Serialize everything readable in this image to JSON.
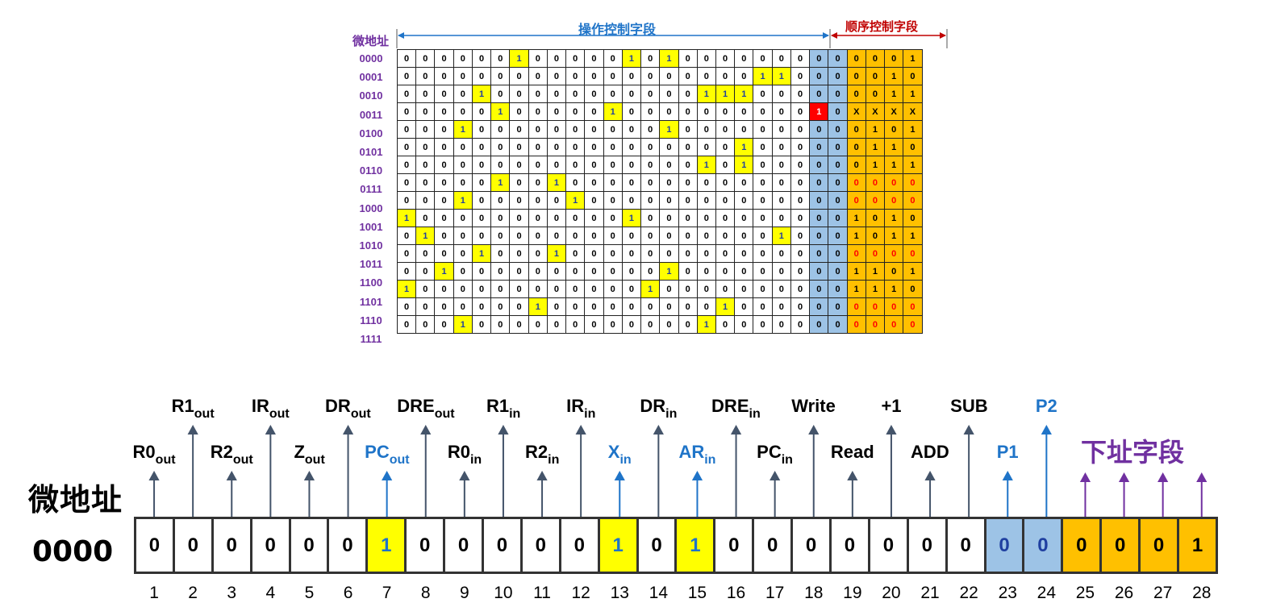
{
  "top_figure": {
    "address_column_header": "微地址",
    "operation_field_label": "操作控制字段",
    "sequence_field_label": "顺序控制字段",
    "rows": [
      {
        "addr": "0000",
        "bits": [
          "0",
          "0",
          "0",
          "0",
          "0",
          "0",
          "1",
          "0",
          "0",
          "0",
          "0",
          "0",
          "1",
          "0",
          "1",
          "0",
          "0",
          "0",
          "0",
          "0",
          "0",
          "0",
          "0",
          "0",
          "0",
          "0",
          "0",
          "1"
        ]
      },
      {
        "addr": "0001",
        "bits": [
          "0",
          "0",
          "0",
          "0",
          "0",
          "0",
          "0",
          "0",
          "0",
          "0",
          "0",
          "0",
          "0",
          "0",
          "0",
          "0",
          "0",
          "0",
          "0",
          "1",
          "1",
          "0",
          "0",
          "0",
          "0",
          "0",
          "1",
          "0"
        ]
      },
      {
        "addr": "0010",
        "bits": [
          "0",
          "0",
          "0",
          "0",
          "1",
          "0",
          "0",
          "0",
          "0",
          "0",
          "0",
          "0",
          "0",
          "0",
          "0",
          "0",
          "1",
          "1",
          "1",
          "0",
          "0",
          "0",
          "0",
          "0",
          "0",
          "0",
          "1",
          "1"
        ]
      },
      {
        "addr": "0011",
        "bits": [
          "0",
          "0",
          "0",
          "0",
          "0",
          "1",
          "0",
          "0",
          "0",
          "0",
          "0",
          "1",
          "0",
          "0",
          "0",
          "0",
          "0",
          "0",
          "0",
          "0",
          "0",
          "0",
          "1",
          "0",
          "X",
          "X",
          "X",
          "X"
        ]
      },
      {
        "addr": "0100",
        "bits": [
          "0",
          "0",
          "0",
          "1",
          "0",
          "0",
          "0",
          "0",
          "0",
          "0",
          "0",
          "0",
          "0",
          "0",
          "1",
          "0",
          "0",
          "0",
          "0",
          "0",
          "0",
          "0",
          "0",
          "0",
          "0",
          "1",
          "0",
          "1"
        ]
      },
      {
        "addr": "0101",
        "bits": [
          "0",
          "0",
          "0",
          "0",
          "0",
          "0",
          "0",
          "0",
          "0",
          "0",
          "0",
          "0",
          "0",
          "0",
          "0",
          "0",
          "0",
          "0",
          "1",
          "0",
          "0",
          "0",
          "0",
          "0",
          "0",
          "1",
          "1",
          "0"
        ]
      },
      {
        "addr": "0110",
        "bits": [
          "0",
          "0",
          "0",
          "0",
          "0",
          "0",
          "0",
          "0",
          "0",
          "0",
          "0",
          "0",
          "0",
          "0",
          "0",
          "0",
          "1",
          "0",
          "1",
          "0",
          "0",
          "0",
          "0",
          "0",
          "0",
          "1",
          "1",
          "1"
        ]
      },
      {
        "addr": "0111",
        "bits": [
          "0",
          "0",
          "0",
          "0",
          "0",
          "1",
          "0",
          "0",
          "1",
          "0",
          "0",
          "0",
          "0",
          "0",
          "0",
          "0",
          "0",
          "0",
          "0",
          "0",
          "0",
          "0",
          "0",
          "0",
          "0",
          "0",
          "0",
          "0"
        ]
      },
      {
        "addr": "1000",
        "bits": [
          "0",
          "0",
          "0",
          "1",
          "0",
          "0",
          "0",
          "0",
          "0",
          "1",
          "0",
          "0",
          "0",
          "0",
          "0",
          "0",
          "0",
          "0",
          "0",
          "0",
          "0",
          "0",
          "0",
          "0",
          "0",
          "0",
          "0",
          "0"
        ]
      },
      {
        "addr": "1001",
        "bits": [
          "1",
          "0",
          "0",
          "0",
          "0",
          "0",
          "0",
          "0",
          "0",
          "0",
          "0",
          "0",
          "1",
          "0",
          "0",
          "0",
          "0",
          "0",
          "0",
          "0",
          "0",
          "0",
          "0",
          "0",
          "1",
          "0",
          "1",
          "0"
        ]
      },
      {
        "addr": "1010",
        "bits": [
          "0",
          "1",
          "0",
          "0",
          "0",
          "0",
          "0",
          "0",
          "0",
          "0",
          "0",
          "0",
          "0",
          "0",
          "0",
          "0",
          "0",
          "0",
          "0",
          "0",
          "1",
          "0",
          "0",
          "0",
          "1",
          "0",
          "1",
          "1"
        ]
      },
      {
        "addr": "1011",
        "bits": [
          "0",
          "0",
          "0",
          "0",
          "1",
          "0",
          "0",
          "0",
          "1",
          "0",
          "0",
          "0",
          "0",
          "0",
          "0",
          "0",
          "0",
          "0",
          "0",
          "0",
          "0",
          "0",
          "0",
          "0",
          "0",
          "0",
          "0",
          "0"
        ]
      },
      {
        "addr": "1100",
        "bits": [
          "0",
          "0",
          "1",
          "0",
          "0",
          "0",
          "0",
          "0",
          "0",
          "0",
          "0",
          "0",
          "0",
          "0",
          "1",
          "0",
          "0",
          "0",
          "0",
          "0",
          "0",
          "0",
          "0",
          "0",
          "1",
          "1",
          "0",
          "1"
        ]
      },
      {
        "addr": "1101",
        "bits": [
          "1",
          "0",
          "0",
          "0",
          "0",
          "0",
          "0",
          "0",
          "0",
          "0",
          "0",
          "0",
          "0",
          "1",
          "0",
          "0",
          "0",
          "0",
          "0",
          "0",
          "0",
          "0",
          "0",
          "0",
          "1",
          "1",
          "1",
          "0"
        ]
      },
      {
        "addr": "1110",
        "bits": [
          "0",
          "0",
          "0",
          "0",
          "0",
          "0",
          "0",
          "1",
          "0",
          "0",
          "0",
          "0",
          "0",
          "0",
          "0",
          "0",
          "0",
          "1",
          "0",
          "0",
          "0",
          "0",
          "0",
          "0",
          "0",
          "0",
          "0",
          "0"
        ]
      },
      {
        "addr": "1111",
        "bits": [
          "0",
          "0",
          "0",
          "1",
          "0",
          "0",
          "0",
          "0",
          "0",
          "0",
          "0",
          "0",
          "0",
          "0",
          "0",
          "0",
          "1",
          "0",
          "0",
          "0",
          "0",
          "0",
          "0",
          "0",
          "0",
          "0",
          "0",
          "0"
        ]
      }
    ],
    "red_zero_rows": [
      "0111",
      "1000",
      "1011",
      "1110",
      "1111"
    ]
  },
  "bottom_figure": {
    "address_label": "微地址",
    "address_value": "0000",
    "next_address_label": "下址字段",
    "bits": [
      "0",
      "0",
      "0",
      "0",
      "0",
      "0",
      "1",
      "0",
      "0",
      "0",
      "0",
      "0",
      "1",
      "0",
      "1",
      "0",
      "0",
      "0",
      "0",
      "0",
      "0",
      "0",
      "0",
      "0",
      "0",
      "0",
      "0",
      "1"
    ],
    "bit_numbers": [
      "1",
      "2",
      "3",
      "4",
      "5",
      "6",
      "7",
      "8",
      "9",
      "10",
      "11",
      "12",
      "13",
      "14",
      "15",
      "16",
      "17",
      "18",
      "19",
      "20",
      "21",
      "22",
      "23",
      "24",
      "25",
      "26",
      "27",
      "28"
    ],
    "signals": [
      {
        "main": "R0",
        "sub": "out",
        "bit": 1,
        "level": "low",
        "highlight": false
      },
      {
        "main": "R1",
        "sub": "out",
        "bit": 2,
        "level": "high",
        "highlight": false
      },
      {
        "main": "R2",
        "sub": "out",
        "bit": 3,
        "level": "low",
        "highlight": false
      },
      {
        "main": "IR",
        "sub": "out",
        "bit": 4,
        "level": "high",
        "highlight": false
      },
      {
        "main": "Z",
        "sub": "out",
        "bit": 5,
        "level": "low",
        "highlight": false
      },
      {
        "main": "DR",
        "sub": "out",
        "bit": 6,
        "level": "high",
        "highlight": false
      },
      {
        "main": "PC",
        "sub": "out",
        "bit": 7,
        "level": "low",
        "highlight": true
      },
      {
        "main": "DRE",
        "sub": "out",
        "bit": 8,
        "level": "high",
        "highlight": false
      },
      {
        "main": "R0",
        "sub": "in",
        "bit": 9,
        "level": "low",
        "highlight": false
      },
      {
        "main": "R1",
        "sub": "in",
        "bit": 10,
        "level": "high",
        "highlight": false
      },
      {
        "main": "R2",
        "sub": "in",
        "bit": 11,
        "level": "low",
        "highlight": false
      },
      {
        "main": "IR",
        "sub": "in",
        "bit": 12,
        "level": "high",
        "highlight": false
      },
      {
        "main": "X",
        "sub": "in",
        "bit": 13,
        "level": "low",
        "highlight": true
      },
      {
        "main": "DR",
        "sub": "in",
        "bit": 14,
        "level": "high",
        "highlight": false
      },
      {
        "main": "AR",
        "sub": "in",
        "bit": 15,
        "level": "low",
        "highlight": true
      },
      {
        "main": "DRE",
        "sub": "in",
        "bit": 16,
        "level": "high",
        "highlight": false
      },
      {
        "main": "PC",
        "sub": "in",
        "bit": 17,
        "level": "low",
        "highlight": false
      },
      {
        "main": "Write",
        "sub": "",
        "bit": 18,
        "level": "high",
        "highlight": false
      },
      {
        "main": "Read",
        "sub": "",
        "bit": 19,
        "level": "low",
        "highlight": false
      },
      {
        "main": "+1",
        "sub": "",
        "bit": 20,
        "level": "high",
        "highlight": false
      },
      {
        "main": "ADD",
        "sub": "",
        "bit": 21,
        "level": "low",
        "highlight": false
      },
      {
        "main": "SUB",
        "sub": "",
        "bit": 22,
        "level": "high",
        "highlight": false
      },
      {
        "main": "P1",
        "sub": "",
        "bit": 23,
        "level": "low",
        "highlight": true
      },
      {
        "main": "P2",
        "sub": "",
        "bit": 24,
        "level": "high",
        "highlight": true
      }
    ]
  },
  "colors": {
    "highlight_yellow": "#FFFF00",
    "p_field_blue": "#9DC3E6",
    "next_addr_orange": "#FFC000",
    "flag_red": "#FF0000",
    "signal_blue": "#1F74C8",
    "purple": "#7030A0",
    "arrow_gray": "#44546A"
  }
}
